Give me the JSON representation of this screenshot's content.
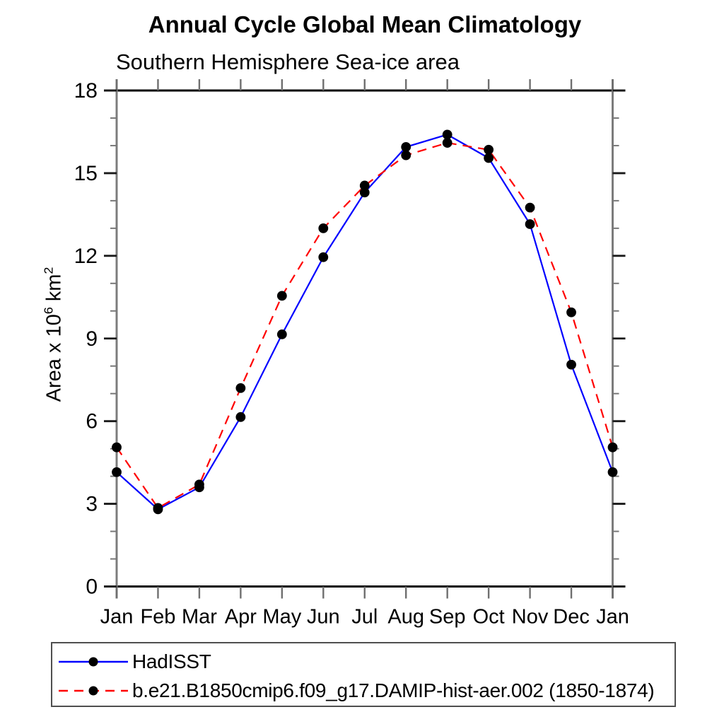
{
  "chart_data": {
    "type": "line",
    "title": "Annual Cycle Global Mean Climatology",
    "subtitle": "Southern Hemisphere Sea-ice area",
    "ylabel": "Area x 10^6 km^2",
    "xlabel": "",
    "categories": [
      "Jan",
      "Feb",
      "Mar",
      "Apr",
      "May",
      "Jun",
      "Jul",
      "Aug",
      "Sep",
      "Oct",
      "Nov",
      "Dec",
      "Jan"
    ],
    "series": [
      {
        "name": "HadISST",
        "line_style": "solid",
        "color": "#0000ff",
        "marker": "filled-circle",
        "marker_color": "#000000",
        "values": [
          4.15,
          2.8,
          3.6,
          6.15,
          9.15,
          11.95,
          14.3,
          15.95,
          16.4,
          15.55,
          13.15,
          8.05,
          4.15
        ]
      },
      {
        "name": "b.e21.B1850cmip6.f09_g17.DAMIP-hist-aer.002 (1850-1874)",
        "line_style": "dashed",
        "color": "#ff0000",
        "marker": "filled-circle",
        "marker_color": "#000000",
        "values": [
          5.05,
          2.85,
          3.7,
          7.2,
          10.55,
          13.0,
          14.55,
          15.65,
          16.1,
          15.85,
          13.75,
          9.95,
          5.05
        ]
      }
    ],
    "ylim": [
      0,
      18
    ],
    "yticks_major": [
      0,
      3,
      6,
      9,
      12,
      15,
      18
    ],
    "yticks_minor_step": 1,
    "grid": false,
    "legend_position": "bottom-left-box"
  },
  "ylabel_parts": {
    "base1": "Area x 10",
    "sup1": "6",
    "base2": " km",
    "sup2": "2"
  },
  "legend": {
    "items": [
      {
        "label": "HadISST",
        "line_style": "solid",
        "line_color": "#0000ff",
        "marker_color": "#000000"
      },
      {
        "label": "b.e21.B1850cmip6.f09_g17.DAMIP-hist-aer.002 (1850-1874)",
        "line_style": "dashed",
        "line_color": "#ff0000",
        "marker_color": "#000000"
      }
    ]
  }
}
